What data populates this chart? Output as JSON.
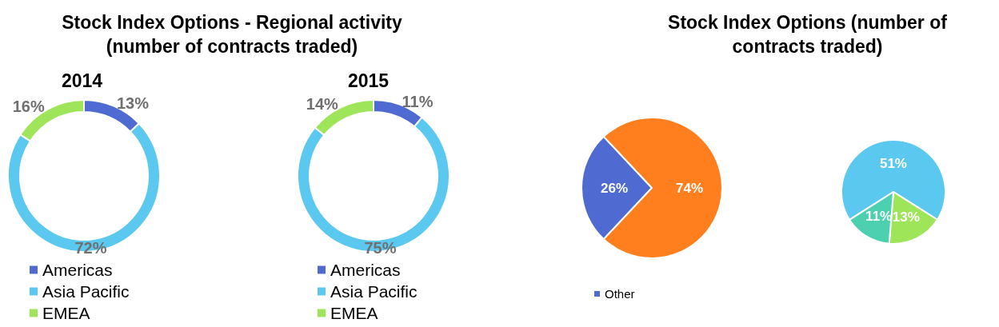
{
  "chart_data": [
    {
      "type": "donut",
      "title": "Stock Index Options - Regional activity (number of contracts traded)",
      "subtitle": "2014",
      "categories": [
        "Americas",
        "Asia Pacific",
        "EMEA"
      ],
      "values": [
        13,
        72,
        16
      ],
      "value_labels": [
        "13%",
        "72%",
        "16%"
      ],
      "colors": [
        "#4f6bd1",
        "#5bc8f0",
        "#9ee55a"
      ],
      "legend": "bottom left"
    },
    {
      "type": "donut",
      "subtitle": "2015",
      "categories": [
        "Americas",
        "Asia Pacific",
        "EMEA"
      ],
      "values": [
        11,
        75,
        14
      ],
      "value_labels": [
        "11%",
        "75%",
        "14%"
      ],
      "colors": [
        "#4f6bd1",
        "#5bc8f0",
        "#9ee55a"
      ],
      "legend": "bottom left"
    },
    {
      "type": "pie",
      "title": "Stock Index Options (number of contracts traded)",
      "categories": [
        "Other",
        null
      ],
      "values": [
        26,
        74
      ],
      "value_labels": [
        "26%",
        "74%"
      ],
      "colors": [
        "#4f6bd1",
        "#ff7f1f"
      ],
      "legend": "bottom"
    },
    {
      "type": "pie",
      "categories": [
        null,
        null,
        null
      ],
      "values": [
        51,
        13,
        11
      ],
      "value_labels": [
        "51%",
        "13%",
        "11%"
      ],
      "colors": [
        "#5bc8f0",
        "#9ee55a",
        "#4cd0b0"
      ]
    }
  ]
}
